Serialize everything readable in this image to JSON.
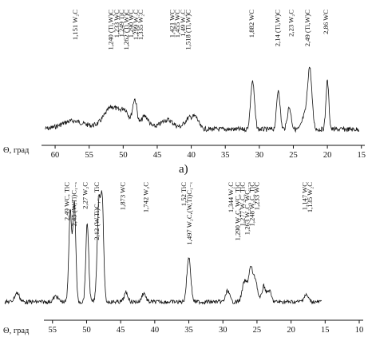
{
  "chart_data": [
    {
      "type": "line",
      "xlabel": "Θ, град",
      "panel_label": "а)",
      "xlim": [
        62,
        14.5
      ],
      "x_reversed": true,
      "xticks": [
        60,
        55,
        50,
        45,
        40,
        35,
        30,
        25,
        20,
        15
      ],
      "grid": false,
      "peaks": [
        {
          "x": 57.5,
          "h": 0.08,
          "w": 2.2
        },
        {
          "x": 51.6,
          "h": 0.22,
          "w": 1.6
        },
        {
          "x": 49.7,
          "h": 0.14,
          "w": 0.8
        },
        {
          "x": 48.3,
          "h": 0.3,
          "w": 0.45
        },
        {
          "x": 46.8,
          "h": 0.12,
          "w": 0.7
        },
        {
          "x": 43.5,
          "h": 0.09,
          "w": 1.2
        },
        {
          "x": 40.3,
          "h": 0.12,
          "w": 0.9
        },
        {
          "x": 39.3,
          "h": 0.1,
          "w": 0.6
        },
        {
          "x": 31.0,
          "h": 0.55,
          "w": 0.4
        },
        {
          "x": 27.2,
          "h": 0.45,
          "w": 0.35
        },
        {
          "x": 25.6,
          "h": 0.25,
          "w": 0.4
        },
        {
          "x": 23.4,
          "h": 0.14,
          "w": 0.5
        },
        {
          "x": 22.6,
          "h": 0.7,
          "w": 0.45
        },
        {
          "x": 20.0,
          "h": 0.55,
          "w": 0.3
        }
      ],
      "annotations": [
        {
          "x": 56.7,
          "text": "1,151 W₂C"
        },
        {
          "x": 51.5,
          "text": "1,240 (Ti,W)C"
        },
        {
          "x": 50.6,
          "text": "1,233 WC"
        },
        {
          "x": 49.9,
          "text": "1,249 TiC"
        },
        {
          "x": 49.2,
          "text": "1,262 (Ti,W)C"
        },
        {
          "x": 48.5,
          "text": "1,290 WC"
        },
        {
          "x": 47.8,
          "text": "1,299 W₂C"
        },
        {
          "x": 47.1,
          "text": "1,335 W₂C"
        },
        {
          "x": 42.5,
          "text": "1,421 WC"
        },
        {
          "x": 41.7,
          "text": "1,455 WC"
        },
        {
          "x": 40.9,
          "text": "1,49 W₂C"
        },
        {
          "x": 40.1,
          "text": "1,518 (Ti,W)C"
        },
        {
          "x": 30.8,
          "text": "1,882 WC"
        },
        {
          "x": 27.0,
          "text": "2,14 (Ti,W)C"
        },
        {
          "x": 25.0,
          "text": "2,23 W₂C"
        },
        {
          "x": 22.6,
          "text": "2,49 (Ti,W)C"
        },
        {
          "x": 19.9,
          "text": "2,86 WC"
        }
      ]
    },
    {
      "type": "line",
      "xlabel": "Θ, град",
      "xlim": [
        62,
        10
      ],
      "x_reversed": true,
      "xticks": [
        55,
        50,
        45,
        40,
        35,
        30,
        25,
        20,
        15,
        10
      ],
      "grid": false,
      "peaks": [
        {
          "x": 60.2,
          "h": 0.08,
          "w": 0.5
        },
        {
          "x": 54.5,
          "h": 0.05,
          "w": 0.5
        },
        {
          "x": 52.4,
          "h": 0.8,
          "w": 0.3
        },
        {
          "x": 51.8,
          "h": 0.88,
          "w": 0.3
        },
        {
          "x": 49.9,
          "h": 0.7,
          "w": 0.3
        },
        {
          "x": 48.2,
          "h": 0.88,
          "w": 0.35
        },
        {
          "x": 47.7,
          "h": 0.85,
          "w": 0.3
        },
        {
          "x": 44.2,
          "h": 0.08,
          "w": 0.4
        },
        {
          "x": 41.6,
          "h": 0.08,
          "w": 0.4
        },
        {
          "x": 35.0,
          "h": 0.4,
          "w": 0.4
        },
        {
          "x": 29.3,
          "h": 0.1,
          "w": 0.4
        },
        {
          "x": 26.8,
          "h": 0.18,
          "w": 0.5
        },
        {
          "x": 25.9,
          "h": 0.3,
          "w": 0.45
        },
        {
          "x": 25.2,
          "h": 0.18,
          "w": 0.4
        },
        {
          "x": 24.0,
          "h": 0.14,
          "w": 0.4
        },
        {
          "x": 23.2,
          "h": 0.1,
          "w": 0.4
        },
        {
          "x": 17.8,
          "h": 0.06,
          "w": 0.5
        }
      ],
      "annotations": [
        {
          "x": 52.6,
          "text": "2,49 WC, TiC"
        },
        {
          "x": 51.5,
          "text": "2,45 (W,Ti)C₁₋ₓ"
        },
        {
          "x": 49.9,
          "text": "2,27 W₂C"
        },
        {
          "x": 48.2,
          "text": "2,12 (W,Ti)C₁₋ₓ, TiC"
        },
        {
          "x": 44.4,
          "text": "1,873 WC"
        },
        {
          "x": 41.0,
          "text": "1,742 W₂C"
        },
        {
          "x": 35.4,
          "text": "1,52 TiC"
        },
        {
          "x": 34.6,
          "text": "1,497 W₂C,(W,Ti)C₁₋ₓ"
        },
        {
          "x": 28.5,
          "text": "1,344 W₂C"
        },
        {
          "x": 27.5,
          "text": "1,290 W₂C, WC, TiC"
        },
        {
          "x": 26.8,
          "text": "1,277 W₂C, TiC"
        },
        {
          "x": 26.1,
          "text": "1,263 W₂C, WC₁₋ₓ"
        },
        {
          "x": 25.4,
          "text": "1,248 W₂C, TiC"
        },
        {
          "x": 24.7,
          "text": "1,233 WC"
        },
        {
          "x": 17.7,
          "text": "1,147 WC"
        },
        {
          "x": 16.9,
          "text": "1,135 W₂C"
        }
      ]
    }
  ]
}
